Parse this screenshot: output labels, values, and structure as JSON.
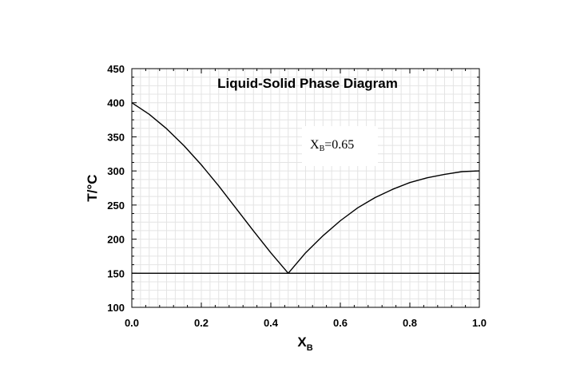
{
  "chart_data": {
    "type": "line",
    "title": "Liquid-Solid Phase Diagram",
    "xlabel_main": "X",
    "xlabel_sub": "B",
    "ylabel": "T/°C",
    "xlim": [
      0.0,
      1.0
    ],
    "ylim": [
      100,
      450
    ],
    "xticks": [
      "0.0",
      "0.2",
      "0.4",
      "0.6",
      "0.8",
      "1.0"
    ],
    "yticks": [
      "100",
      "150",
      "200",
      "250",
      "300",
      "350",
      "400",
      "450"
    ],
    "grid": true,
    "annotation": {
      "main": "X",
      "sub": "B",
      "rest": "=0.65",
      "x": 0.6,
      "y": 340
    },
    "series": [
      {
        "x": [
          0.0,
          0.05,
          0.1,
          0.15,
          0.2,
          0.25,
          0.3,
          0.35,
          0.4,
          0.45
        ],
        "y": [
          400,
          383,
          362,
          337,
          309,
          278,
          245,
          212,
          180,
          150
        ]
      },
      {
        "x": [
          0.45,
          0.5,
          0.55,
          0.6,
          0.65,
          0.7,
          0.75,
          0.8,
          0.85,
          0.9,
          0.95,
          1.0
        ],
        "y": [
          150,
          180,
          205,
          227,
          246,
          261,
          273,
          283,
          290,
          295,
          299,
          300
        ]
      },
      {
        "x": [
          0.0,
          1.0
        ],
        "y": [
          150,
          150
        ]
      }
    ]
  }
}
